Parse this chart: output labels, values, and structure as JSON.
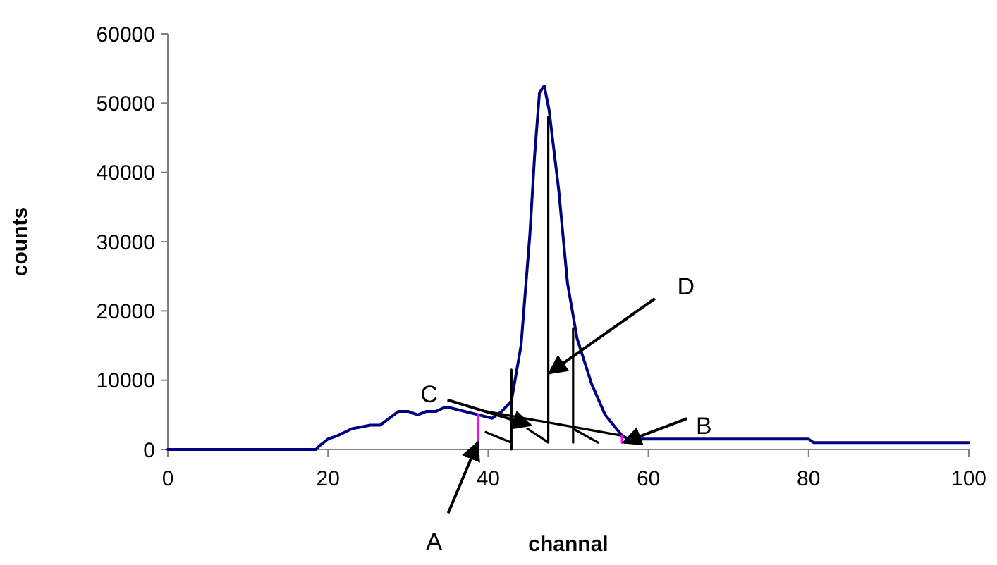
{
  "chart_data": {
    "type": "line",
    "xlabel": "channal",
    "ylabel": "counts",
    "xlim": [
      0,
      100
    ],
    "xticks": [
      0,
      20,
      40,
      60,
      80,
      100
    ],
    "ylim": [
      0,
      60000
    ],
    "yticks": [
      0,
      10000,
      20000,
      30000,
      40000,
      50000,
      60000
    ],
    "grid": false,
    "marker": "none",
    "line_style": "solid",
    "series": [
      {
        "color": "#000080",
        "x": [
          0,
          18.5,
          18.9,
          20.0,
          21.2,
          23.0,
          25.3,
          26.5,
          28.8,
          30.0,
          31.2,
          32.3,
          33.5,
          34.4,
          35.3,
          38.8,
          40.5,
          41.7,
          42.9,
          44.1,
          45.2,
          45.8,
          46.4,
          47.0,
          47.6,
          48.8,
          49.9,
          51.1,
          52.9,
          54.6,
          56.7,
          57.5,
          70.5,
          71.9,
          73.3,
          80.0,
          80.6,
          100
        ],
        "values": [
          0,
          0,
          500,
          1500,
          2000,
          3000,
          3500,
          3500,
          5500,
          5500,
          5000,
          5500,
          5500,
          6000,
          6000,
          5000,
          4500,
          5500,
          7000,
          15000,
          31000,
          42500,
          51500,
          52500,
          49000,
          37500,
          24000,
          16000,
          9500,
          5000,
          2000,
          1500,
          1500,
          1500,
          1500,
          1500,
          1000,
          1000
        ]
      },
      {
        "color": "#000000",
        "x": [
          42.9,
          42.9
        ],
        "values": [
          11500,
          0
        ]
      },
      {
        "color": "#000000",
        "x": [
          39.7,
          42.9
        ],
        "values": [
          2500,
          1000
        ]
      },
      {
        "color": "#000000",
        "x": [
          47.5,
          47.5,
          44.9
        ],
        "values": [
          48000,
          1000,
          3000
        ]
      },
      {
        "color": "#000000",
        "x": [
          50.6,
          50.6
        ],
        "values": [
          17500,
          1000
        ]
      },
      {
        "color": "#000000",
        "x": [
          50.6,
          53.7
        ],
        "values": [
          3000,
          1000
        ]
      },
      {
        "color": "#000000",
        "x": [
          39.7,
          56.7
        ],
        "values": [
          5500,
          2000
        ]
      },
      {
        "color": "#ff00ff",
        "x": [
          38.7,
          38.7
        ],
        "values": [
          0,
          5000
        ]
      },
      {
        "color": "#ff00ff",
        "x": [
          56.7,
          56.7
        ],
        "values": [
          1000,
          2000
        ]
      }
    ],
    "annotations": [
      {
        "text": "A",
        "x": 38.7,
        "y": 1000
      },
      {
        "text": "B",
        "x": 56.9,
        "y": 1000
      },
      {
        "text": "C",
        "x": 45.3,
        "y": 3500
      },
      {
        "text": "D",
        "x": 47.6,
        "y": 11000
      }
    ]
  }
}
